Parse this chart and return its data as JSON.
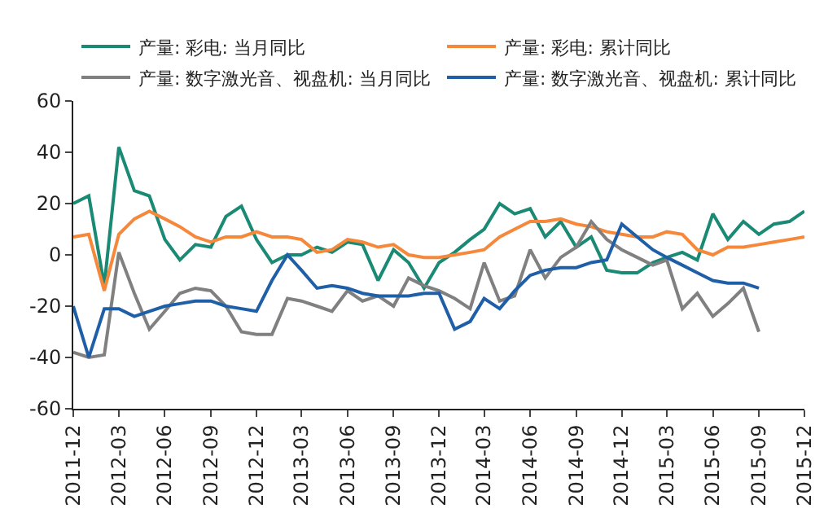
{
  "chart_data": {
    "type": "line",
    "x": [
      "2011-12",
      "2012-01",
      "2012-02",
      "2012-03",
      "2012-04",
      "2012-05",
      "2012-06",
      "2012-07",
      "2012-08",
      "2012-09",
      "2012-10",
      "2012-11",
      "2012-12",
      "2013-01",
      "2013-02",
      "2013-03",
      "2013-04",
      "2013-05",
      "2013-06",
      "2013-07",
      "2013-08",
      "2013-09",
      "2013-10",
      "2013-11",
      "2013-12",
      "2014-01",
      "2014-02",
      "2014-03",
      "2014-04",
      "2014-05",
      "2014-06",
      "2014-07",
      "2014-08",
      "2014-09",
      "2014-10",
      "2014-11",
      "2014-12",
      "2015-01",
      "2015-02",
      "2015-03",
      "2015-04",
      "2015-05",
      "2015-06",
      "2015-07",
      "2015-08",
      "2015-09",
      "2015-10",
      "2015-11",
      "2015-12"
    ],
    "series": [
      {
        "name": "产量: 彩电: 当月同比",
        "color": "#1a8a74",
        "values": [
          20,
          23,
          -12,
          42,
          25,
          23,
          6,
          -2,
          4,
          3,
          15,
          19,
          6,
          -3,
          0,
          0,
          3,
          1,
          5,
          4,
          -10,
          2,
          -3,
          -13,
          -3,
          1,
          6,
          10,
          20,
          16,
          18,
          7,
          13,
          3,
          7,
          -6,
          -7,
          -7,
          -3,
          -1,
          1,
          -2,
          16,
          6,
          13,
          8,
          12,
          13,
          17
        ]
      },
      {
        "name": "产量: 彩电: 累计同比",
        "color": "#f5883a",
        "values": [
          7,
          8,
          -14,
          8,
          14,
          17,
          14,
          11,
          7,
          5,
          7,
          7,
          9,
          7,
          7,
          6,
          1,
          2,
          6,
          5,
          3,
          4,
          0,
          -1,
          -1,
          0,
          1,
          2,
          7,
          10,
          13,
          13,
          14,
          12,
          11,
          9,
          8,
          7,
          7,
          9,
          8,
          2,
          0,
          3,
          3,
          4,
          5,
          6,
          7
        ]
      },
      {
        "name": "产量: 数字激光音、视盘机: 当月同比",
        "color": "#808080",
        "values": [
          -38,
          -40,
          -39,
          1,
          -15,
          -29,
          -22,
          -15,
          -13,
          -14,
          -20,
          -30,
          -31,
          -31,
          -17,
          -18,
          -20,
          -22,
          -14,
          -18,
          -16,
          -20,
          -9,
          -12,
          -14,
          -17,
          -21,
          -3,
          -18,
          -16,
          2,
          -9,
          -1,
          3,
          13,
          6,
          2,
          -1,
          -4,
          -2,
          -21,
          -15,
          -24,
          -19,
          -13,
          -30,
          null,
          null,
          null
        ]
      },
      {
        "name": "产量: 数字激光音、视盘机: 累计同比",
        "color": "#1f5fa8",
        "values": [
          -20,
          -40,
          -21,
          -21,
          -24,
          -22,
          -20,
          -19,
          -18,
          -18,
          -20,
          -21,
          -22,
          -10,
          0,
          -6,
          -13,
          -12,
          -13,
          -15,
          -16,
          -16,
          -16,
          -15,
          -15,
          -29,
          -26,
          -17,
          -21,
          -14,
          -8,
          -6,
          -5,
          -5,
          -3,
          -2,
          12,
          7,
          2,
          -1,
          -4,
          -7,
          -10,
          -11,
          -11,
          -13,
          null,
          null,
          null
        ]
      }
    ],
    "xlim": [
      "2011-12",
      "2015-12"
    ],
    "xticks": [
      "2011-12",
      "2012-03",
      "2012-06",
      "2012-09",
      "2012-12",
      "2013-03",
      "2013-06",
      "2013-09",
      "2013-12",
      "2014-03",
      "2014-06",
      "2014-09",
      "2014-12",
      "2015-03",
      "2015-06",
      "2015-09",
      "2015-12"
    ],
    "ylim": [
      -60,
      60
    ],
    "yticks": [
      -60,
      -40,
      -20,
      0,
      20,
      40,
      60
    ],
    "legend": "top",
    "marker": "none",
    "line_style": "solid"
  }
}
